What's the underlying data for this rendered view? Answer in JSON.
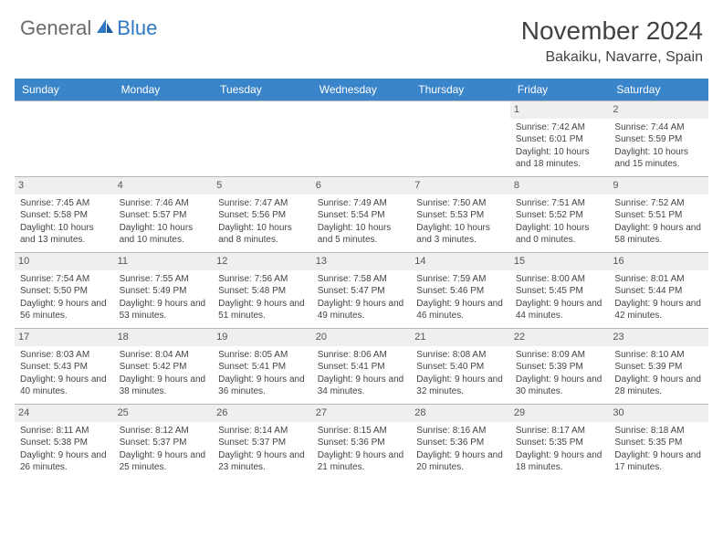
{
  "logo": {
    "general": "General",
    "blue": "Blue"
  },
  "colors": {
    "header_bg": "#3a84c9",
    "header_text": "#ffffff",
    "daynum_bg": "#eef0f0",
    "border": "#b8b8b8",
    "text": "#444444",
    "title": "#424242",
    "logo_gray": "#6b6b6b",
    "logo_blue": "#2f78c3"
  },
  "title": "November 2024",
  "location": "Bakaiku, Navarre, Spain",
  "day_names": [
    "Sunday",
    "Monday",
    "Tuesday",
    "Wednesday",
    "Thursday",
    "Friday",
    "Saturday"
  ],
  "weeks": [
    [
      null,
      null,
      null,
      null,
      null,
      {
        "num": "1",
        "sunrise": "7:42 AM",
        "sunset": "6:01 PM",
        "daylight": "10 hours and 18 minutes."
      },
      {
        "num": "2",
        "sunrise": "7:44 AM",
        "sunset": "5:59 PM",
        "daylight": "10 hours and 15 minutes."
      }
    ],
    [
      {
        "num": "3",
        "sunrise": "7:45 AM",
        "sunset": "5:58 PM",
        "daylight": "10 hours and 13 minutes."
      },
      {
        "num": "4",
        "sunrise": "7:46 AM",
        "sunset": "5:57 PM",
        "daylight": "10 hours and 10 minutes."
      },
      {
        "num": "5",
        "sunrise": "7:47 AM",
        "sunset": "5:56 PM",
        "daylight": "10 hours and 8 minutes."
      },
      {
        "num": "6",
        "sunrise": "7:49 AM",
        "sunset": "5:54 PM",
        "daylight": "10 hours and 5 minutes."
      },
      {
        "num": "7",
        "sunrise": "7:50 AM",
        "sunset": "5:53 PM",
        "daylight": "10 hours and 3 minutes."
      },
      {
        "num": "8",
        "sunrise": "7:51 AM",
        "sunset": "5:52 PM",
        "daylight": "10 hours and 0 minutes."
      },
      {
        "num": "9",
        "sunrise": "7:52 AM",
        "sunset": "5:51 PM",
        "daylight": "9 hours and 58 minutes."
      }
    ],
    [
      {
        "num": "10",
        "sunrise": "7:54 AM",
        "sunset": "5:50 PM",
        "daylight": "9 hours and 56 minutes."
      },
      {
        "num": "11",
        "sunrise": "7:55 AM",
        "sunset": "5:49 PM",
        "daylight": "9 hours and 53 minutes."
      },
      {
        "num": "12",
        "sunrise": "7:56 AM",
        "sunset": "5:48 PM",
        "daylight": "9 hours and 51 minutes."
      },
      {
        "num": "13",
        "sunrise": "7:58 AM",
        "sunset": "5:47 PM",
        "daylight": "9 hours and 49 minutes."
      },
      {
        "num": "14",
        "sunrise": "7:59 AM",
        "sunset": "5:46 PM",
        "daylight": "9 hours and 46 minutes."
      },
      {
        "num": "15",
        "sunrise": "8:00 AM",
        "sunset": "5:45 PM",
        "daylight": "9 hours and 44 minutes."
      },
      {
        "num": "16",
        "sunrise": "8:01 AM",
        "sunset": "5:44 PM",
        "daylight": "9 hours and 42 minutes."
      }
    ],
    [
      {
        "num": "17",
        "sunrise": "8:03 AM",
        "sunset": "5:43 PM",
        "daylight": "9 hours and 40 minutes."
      },
      {
        "num": "18",
        "sunrise": "8:04 AM",
        "sunset": "5:42 PM",
        "daylight": "9 hours and 38 minutes."
      },
      {
        "num": "19",
        "sunrise": "8:05 AM",
        "sunset": "5:41 PM",
        "daylight": "9 hours and 36 minutes."
      },
      {
        "num": "20",
        "sunrise": "8:06 AM",
        "sunset": "5:41 PM",
        "daylight": "9 hours and 34 minutes."
      },
      {
        "num": "21",
        "sunrise": "8:08 AM",
        "sunset": "5:40 PM",
        "daylight": "9 hours and 32 minutes."
      },
      {
        "num": "22",
        "sunrise": "8:09 AM",
        "sunset": "5:39 PM",
        "daylight": "9 hours and 30 minutes."
      },
      {
        "num": "23",
        "sunrise": "8:10 AM",
        "sunset": "5:39 PM",
        "daylight": "9 hours and 28 minutes."
      }
    ],
    [
      {
        "num": "24",
        "sunrise": "8:11 AM",
        "sunset": "5:38 PM",
        "daylight": "9 hours and 26 minutes."
      },
      {
        "num": "25",
        "sunrise": "8:12 AM",
        "sunset": "5:37 PM",
        "daylight": "9 hours and 25 minutes."
      },
      {
        "num": "26",
        "sunrise": "8:14 AM",
        "sunset": "5:37 PM",
        "daylight": "9 hours and 23 minutes."
      },
      {
        "num": "27",
        "sunrise": "8:15 AM",
        "sunset": "5:36 PM",
        "daylight": "9 hours and 21 minutes."
      },
      {
        "num": "28",
        "sunrise": "8:16 AM",
        "sunset": "5:36 PM",
        "daylight": "9 hours and 20 minutes."
      },
      {
        "num": "29",
        "sunrise": "8:17 AM",
        "sunset": "5:35 PM",
        "daylight": "9 hours and 18 minutes."
      },
      {
        "num": "30",
        "sunrise": "8:18 AM",
        "sunset": "5:35 PM",
        "daylight": "9 hours and 17 minutes."
      }
    ]
  ],
  "labels": {
    "sunrise": "Sunrise: ",
    "sunset": "Sunset: ",
    "daylight": "Daylight: "
  }
}
